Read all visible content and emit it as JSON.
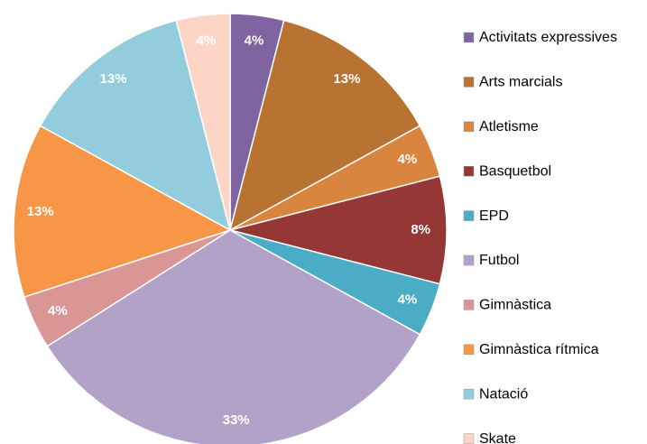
{
  "chart_data": {
    "type": "pie",
    "categories": [
      "Activitats expressives",
      "Arts marcials",
      "Atletisme",
      "Basquetbol",
      "EPD",
      "Futbol",
      "Gimnàstica",
      "Gimnàstica rítmica",
      "Natació",
      "Skate"
    ],
    "values": [
      4,
      13,
      4,
      8,
      4,
      33,
      4,
      13,
      13,
      4
    ],
    "value_labels": [
      "4%",
      "13%",
      "4%",
      "8%",
      "4%",
      "33%",
      "4%",
      "13%",
      "13%",
      "4%"
    ],
    "colors": [
      "#8064a2",
      "#b87333",
      "#d9843f",
      "#953735",
      "#4bacc6",
      "#b3a2c7",
      "#d99694",
      "#f79646",
      "#93cddd",
      "#fcd5c7"
    ],
    "legend": "right"
  }
}
